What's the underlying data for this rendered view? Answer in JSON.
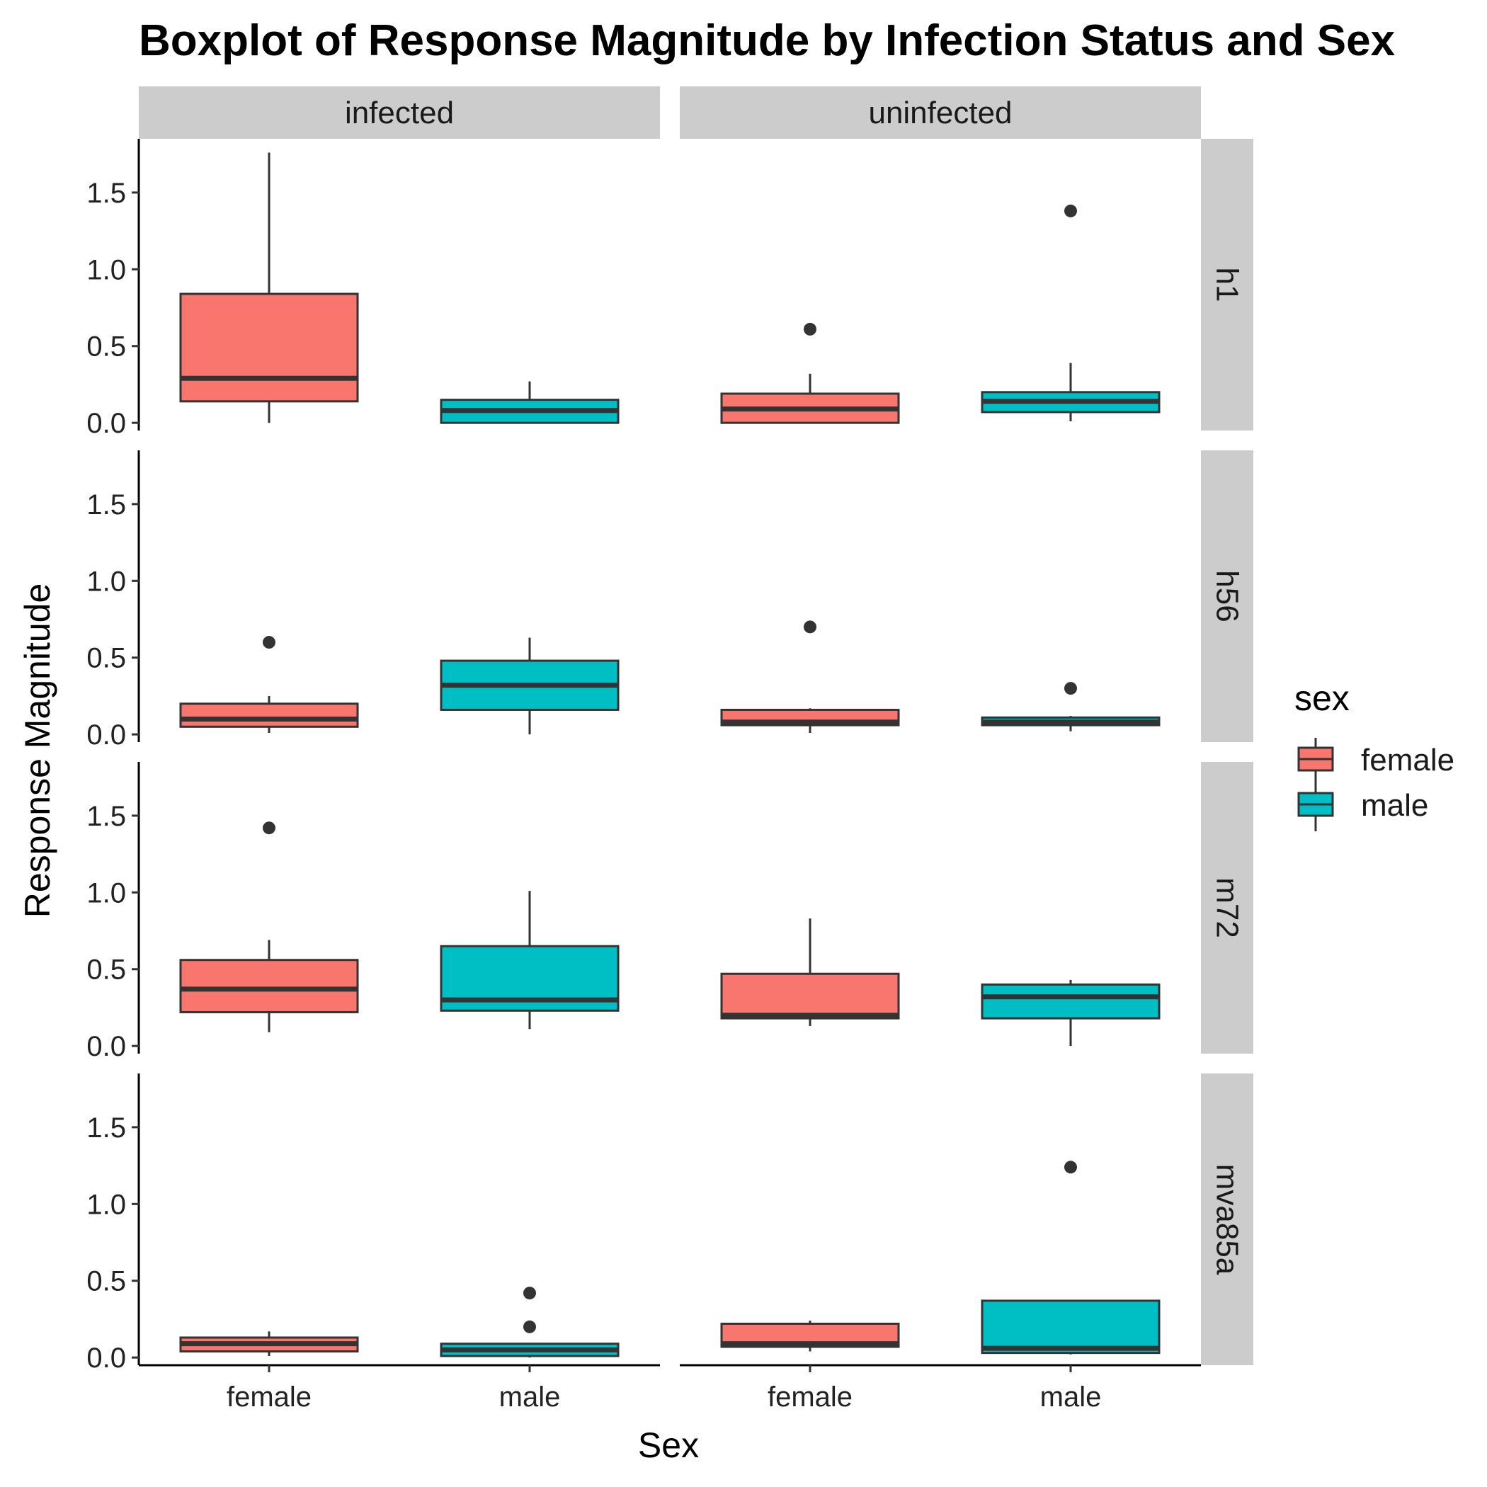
{
  "chart_data": {
    "type": "boxplot",
    "title": "Boxplot of Response Magnitude by Infection Status and Sex",
    "xlabel": "Sex",
    "ylabel": "Response Magnitude",
    "ylim": [
      -0.05,
      1.85
    ],
    "yticks": [
      0.0,
      0.5,
      1.0,
      1.5
    ],
    "ytick_labels": [
      "0.0",
      "0.5",
      "1.0",
      "1.5"
    ],
    "categories": [
      "female",
      "male"
    ],
    "facet_columns": [
      "infected",
      "uninfected"
    ],
    "facet_rows": [
      "h1",
      "h56",
      "m72",
      "mva85a"
    ],
    "legend": {
      "title": "sex",
      "position": "right",
      "entries": [
        {
          "label": "female",
          "color": "#F8766D"
        },
        {
          "label": "male",
          "color": "#00BFC4"
        }
      ]
    },
    "colors": {
      "female": "#F8766D",
      "male": "#00BFC4",
      "outline": "#333333",
      "strip": "#cccccc"
    },
    "panels": [
      {
        "row": "h1",
        "col": "infected",
        "boxes": [
          {
            "sex": "female",
            "whisker_low": 0.0,
            "q1": 0.14,
            "median": 0.29,
            "q3": 0.84,
            "whisker_high": 1.76,
            "outliers": []
          },
          {
            "sex": "male",
            "whisker_low": 0.0,
            "q1": 0.0,
            "median": 0.08,
            "q3": 0.15,
            "whisker_high": 0.27,
            "outliers": []
          }
        ]
      },
      {
        "row": "h1",
        "col": "uninfected",
        "boxes": [
          {
            "sex": "female",
            "whisker_low": 0.0,
            "q1": 0.0,
            "median": 0.09,
            "q3": 0.19,
            "whisker_high": 0.32,
            "outliers": [
              0.61
            ]
          },
          {
            "sex": "male",
            "whisker_low": 0.01,
            "q1": 0.07,
            "median": 0.14,
            "q3": 0.2,
            "whisker_high": 0.39,
            "outliers": [
              1.38
            ]
          }
        ]
      },
      {
        "row": "h56",
        "col": "infected",
        "boxes": [
          {
            "sex": "female",
            "whisker_low": 0.01,
            "q1": 0.05,
            "median": 0.1,
            "q3": 0.2,
            "whisker_high": 0.25,
            "outliers": [
              0.6
            ]
          },
          {
            "sex": "male",
            "whisker_low": 0.0,
            "q1": 0.16,
            "median": 0.32,
            "q3": 0.48,
            "whisker_high": 0.63,
            "outliers": []
          }
        ]
      },
      {
        "row": "h56",
        "col": "uninfected",
        "boxes": [
          {
            "sex": "female",
            "whisker_low": 0.01,
            "q1": 0.06,
            "median": 0.08,
            "q3": 0.16,
            "whisker_high": 0.17,
            "outliers": [
              0.7
            ]
          },
          {
            "sex": "male",
            "whisker_low": 0.02,
            "q1": 0.06,
            "median": 0.08,
            "q3": 0.11,
            "whisker_high": 0.12,
            "outliers": [
              0.3
            ]
          }
        ]
      },
      {
        "row": "m72",
        "col": "infected",
        "boxes": [
          {
            "sex": "female",
            "whisker_low": 0.09,
            "q1": 0.22,
            "median": 0.37,
            "q3": 0.56,
            "whisker_high": 0.69,
            "outliers": [
              1.42
            ]
          },
          {
            "sex": "male",
            "whisker_low": 0.11,
            "q1": 0.23,
            "median": 0.3,
            "q3": 0.65,
            "whisker_high": 1.01,
            "outliers": []
          }
        ]
      },
      {
        "row": "m72",
        "col": "uninfected",
        "boxes": [
          {
            "sex": "female",
            "whisker_low": 0.13,
            "q1": 0.18,
            "median": 0.2,
            "q3": 0.47,
            "whisker_high": 0.83,
            "outliers": []
          },
          {
            "sex": "male",
            "whisker_low": 0.0,
            "q1": 0.18,
            "median": 0.32,
            "q3": 0.4,
            "whisker_high": 0.43,
            "outliers": []
          }
        ]
      },
      {
        "row": "mva85a",
        "col": "infected",
        "boxes": [
          {
            "sex": "female",
            "whisker_low": 0.01,
            "q1": 0.04,
            "median": 0.09,
            "q3": 0.13,
            "whisker_high": 0.17,
            "outliers": []
          },
          {
            "sex": "male",
            "whisker_low": 0.0,
            "q1": 0.01,
            "median": 0.05,
            "q3": 0.09,
            "whisker_high": 0.09,
            "outliers": [
              0.42,
              0.2
            ]
          }
        ]
      },
      {
        "row": "mva85a",
        "col": "uninfected",
        "boxes": [
          {
            "sex": "female",
            "whisker_low": 0.04,
            "q1": 0.07,
            "median": 0.09,
            "q3": 0.22,
            "whisker_high": 0.24,
            "outliers": []
          },
          {
            "sex": "male",
            "whisker_low": 0.02,
            "q1": 0.03,
            "median": 0.06,
            "q3": 0.37,
            "whisker_high": 0.37,
            "outliers": [
              1.24
            ]
          }
        ]
      }
    ]
  }
}
